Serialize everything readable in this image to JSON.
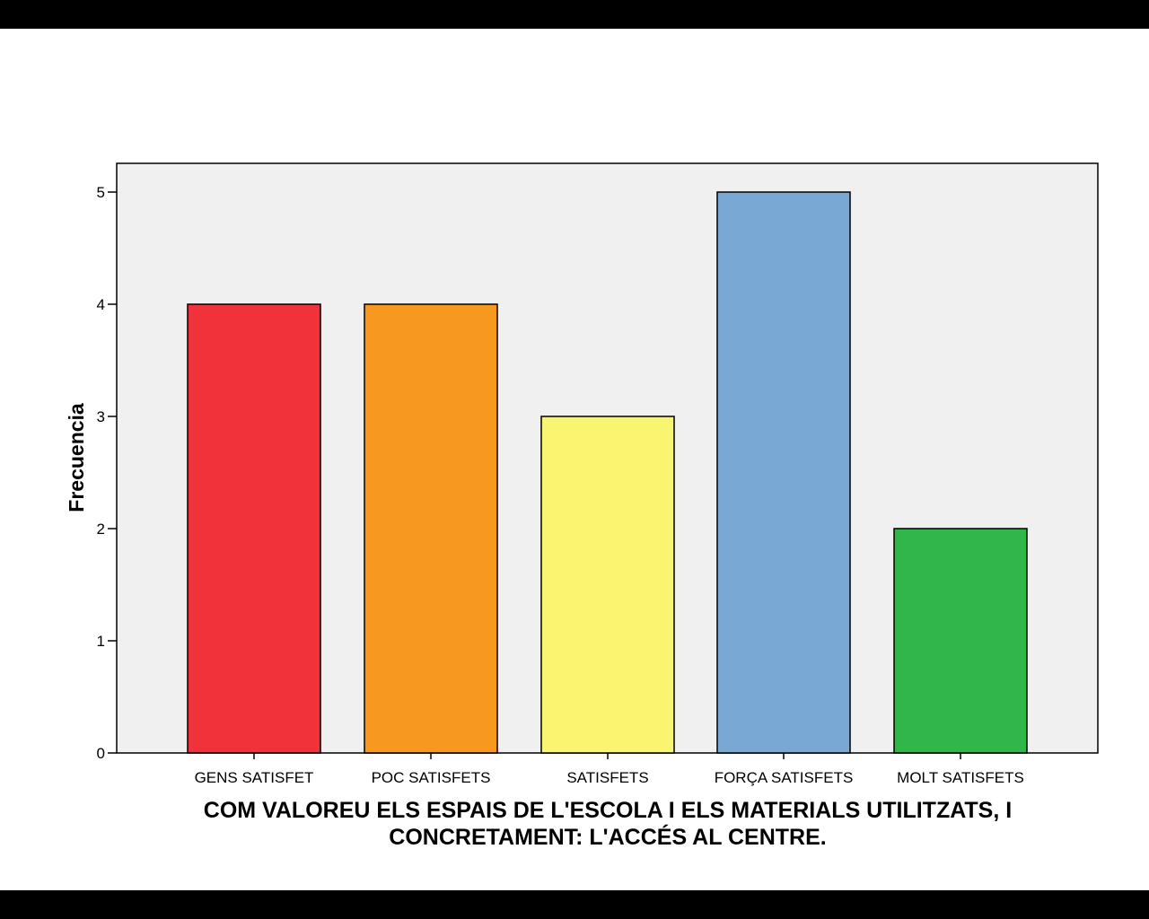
{
  "chart_data": {
    "type": "bar",
    "categories": [
      "GENS SATISFET",
      "POC SATISFETS",
      "SATISFETS",
      "FORÇA SATISFETS",
      "MOLT SATISFETS"
    ],
    "values": [
      4,
      4,
      3,
      5,
      2
    ],
    "colors": [
      "#f0323a",
      "#f8991f",
      "#faf571",
      "#7aa8d5",
      "#2fb749"
    ],
    "title": "",
    "ylabel": "Frecuencia",
    "xlabel_lines": [
      "COM VALOREU ELS ESPAIS DE L'ESCOLA I ELS MATERIALS UTILITZATS, I",
      "CONCRETAMENT: L'ACCÉS AL CENTRE."
    ],
    "yticks": [
      0,
      1,
      2,
      3,
      4,
      5
    ],
    "ylim": [
      0,
      5.27
    ],
    "grid": false,
    "plot_background": "#f0f0f0"
  }
}
